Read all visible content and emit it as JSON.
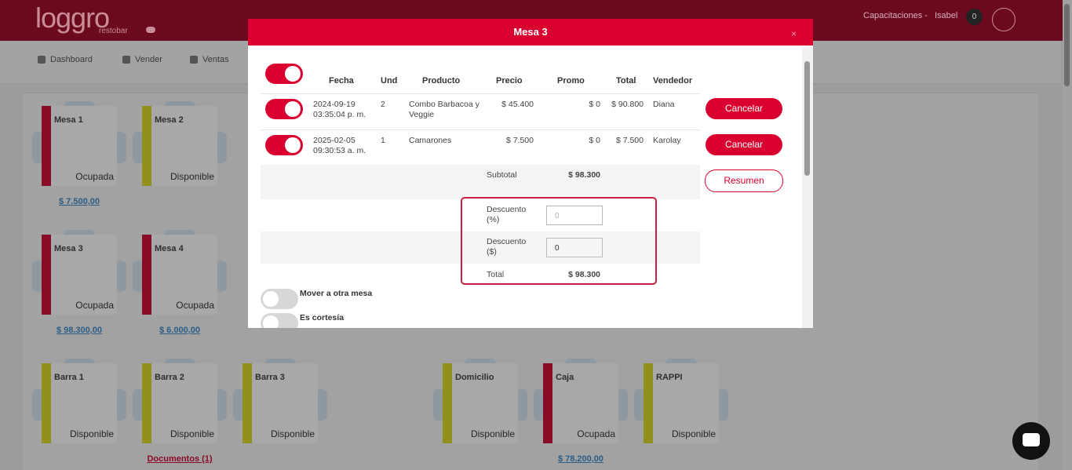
{
  "header": {
    "logo": "loggro",
    "logo_sub": "restobar",
    "company": "Capacitaciones -",
    "user": "Isabel",
    "notifications": "0"
  },
  "nav": [
    "Dashboard",
    "Vender",
    "Ventas"
  ],
  "tables": [
    {
      "name": "Mesa 1",
      "status": "Ocupada",
      "amount": "$ 7.500,00"
    },
    {
      "name": "Mesa 2",
      "status": "Disponible"
    },
    {
      "name": "Mesa 3",
      "status": "Ocupada",
      "amount": "$ 98.300,00"
    },
    {
      "name": "Mesa 4",
      "status": "Ocupada",
      "amount": "$ 6.000,00"
    },
    {
      "name": "Barra 1",
      "status": "Disponible"
    },
    {
      "name": "Barra 2",
      "status": "Disponible",
      "amount": "Documentos (1)"
    },
    {
      "name": "Barra 3",
      "status": "Disponible"
    },
    {
      "name": "Domicilio",
      "status": "Disponible"
    },
    {
      "name": "Caja",
      "status": "Ocupada",
      "amount": "$ 78.200,00"
    },
    {
      "name": "RAPPI",
      "status": "Disponible"
    }
  ],
  "modal": {
    "title": "Mesa 3",
    "columns": [
      "Fecha",
      "Und",
      "Producto",
      "Precio",
      "Promo",
      "Total",
      "Vendedor"
    ],
    "rows": [
      [
        "2024-09-19 03:35:04 p. m.",
        "2",
        "Combo Barbacoa y Veggie",
        "$ 45.400",
        "$ 0",
        "$ 90.800",
        "Diana"
      ],
      [
        "2025-02-05 09:30:53 a. m.",
        "1",
        "Camarones",
        "$ 7.500",
        "$ 0",
        "$ 7.500",
        "Karolay"
      ]
    ],
    "cancel_label": "Cancelar",
    "subtotal_label": "Subtotal",
    "subtotal": "$ 98.300",
    "summary_label": "Resumen",
    "discount_pct_label": "Descuento (%)",
    "discount_pct_placeholder": "0",
    "discount_amount_label": "Descuento ($)",
    "discount_amount_value": "0",
    "total_label": "Total",
    "total": "$ 98.300",
    "options": [
      "Mover a otra mesa",
      "Es cortesía"
    ]
  }
}
